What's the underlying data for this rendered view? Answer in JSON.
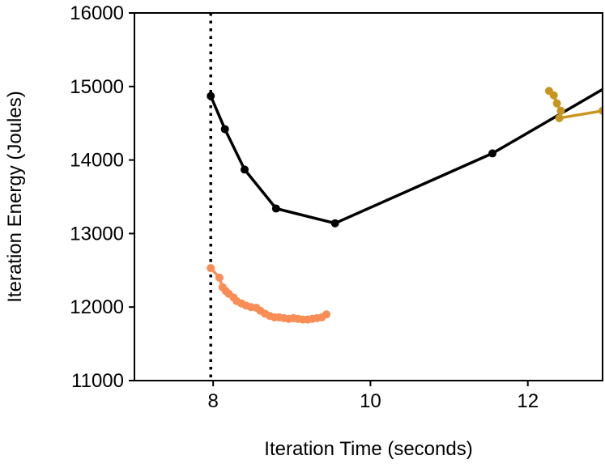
{
  "chart_data": {
    "type": "line",
    "title": "",
    "xlabel": "Iteration Time (seconds)",
    "ylabel": "Iteration Energy (Joules)",
    "xlim": [
      7.0,
      12.95
    ],
    "ylim": [
      11000,
      16000
    ],
    "x_ticks": [
      8,
      10,
      12
    ],
    "y_ticks": [
      11000,
      12000,
      13000,
      14000,
      15000,
      16000
    ],
    "vline": {
      "x": 7.97,
      "style": "dotted",
      "color": "#000000"
    },
    "series": [
      {
        "name": "black",
        "color": "#000000",
        "clip": true,
        "points": [
          [
            7.97,
            14870
          ],
          [
            8.15,
            14420
          ],
          [
            8.4,
            13870
          ],
          [
            8.8,
            13340
          ],
          [
            9.55,
            13140
          ],
          [
            11.55,
            14090
          ],
          [
            12.95,
            14960
          ]
        ],
        "markers": [
          [
            7.97,
            14870
          ],
          [
            8.15,
            14420
          ],
          [
            8.4,
            13870
          ],
          [
            8.8,
            13340
          ],
          [
            9.55,
            13140
          ],
          [
            11.55,
            14090
          ]
        ]
      },
      {
        "name": "orange",
        "color": "#FA8C55",
        "points": [
          [
            7.97,
            12530
          ],
          [
            8.08,
            12400
          ],
          [
            8.12,
            12270
          ],
          [
            8.16,
            12220
          ],
          [
            8.2,
            12180
          ],
          [
            8.26,
            12130
          ],
          [
            8.3,
            12080
          ],
          [
            8.36,
            12050
          ],
          [
            8.42,
            12020
          ],
          [
            8.48,
            12000
          ],
          [
            8.55,
            11990
          ],
          [
            8.6,
            11950
          ],
          [
            8.66,
            11910
          ],
          [
            8.72,
            11880
          ],
          [
            8.78,
            11860
          ],
          [
            8.84,
            11860
          ],
          [
            8.9,
            11850
          ],
          [
            8.96,
            11840
          ],
          [
            9.02,
            11850
          ],
          [
            9.08,
            11840
          ],
          [
            9.14,
            11830
          ],
          [
            9.2,
            11830
          ],
          [
            9.26,
            11840
          ],
          [
            9.32,
            11850
          ],
          [
            9.38,
            11860
          ],
          [
            9.44,
            11900
          ]
        ]
      },
      {
        "name": "gold",
        "color": "#C8961E",
        "clip": true,
        "points": [
          [
            12.27,
            14940
          ],
          [
            12.33,
            14880
          ],
          [
            12.37,
            14770
          ],
          [
            12.42,
            14670
          ],
          [
            12.4,
            14570
          ],
          [
            12.95,
            14670
          ]
        ],
        "markers": [
          [
            12.27,
            14940
          ],
          [
            12.33,
            14880
          ],
          [
            12.37,
            14770
          ],
          [
            12.42,
            14670
          ],
          [
            12.4,
            14570
          ],
          [
            12.95,
            14670
          ]
        ]
      }
    ]
  }
}
